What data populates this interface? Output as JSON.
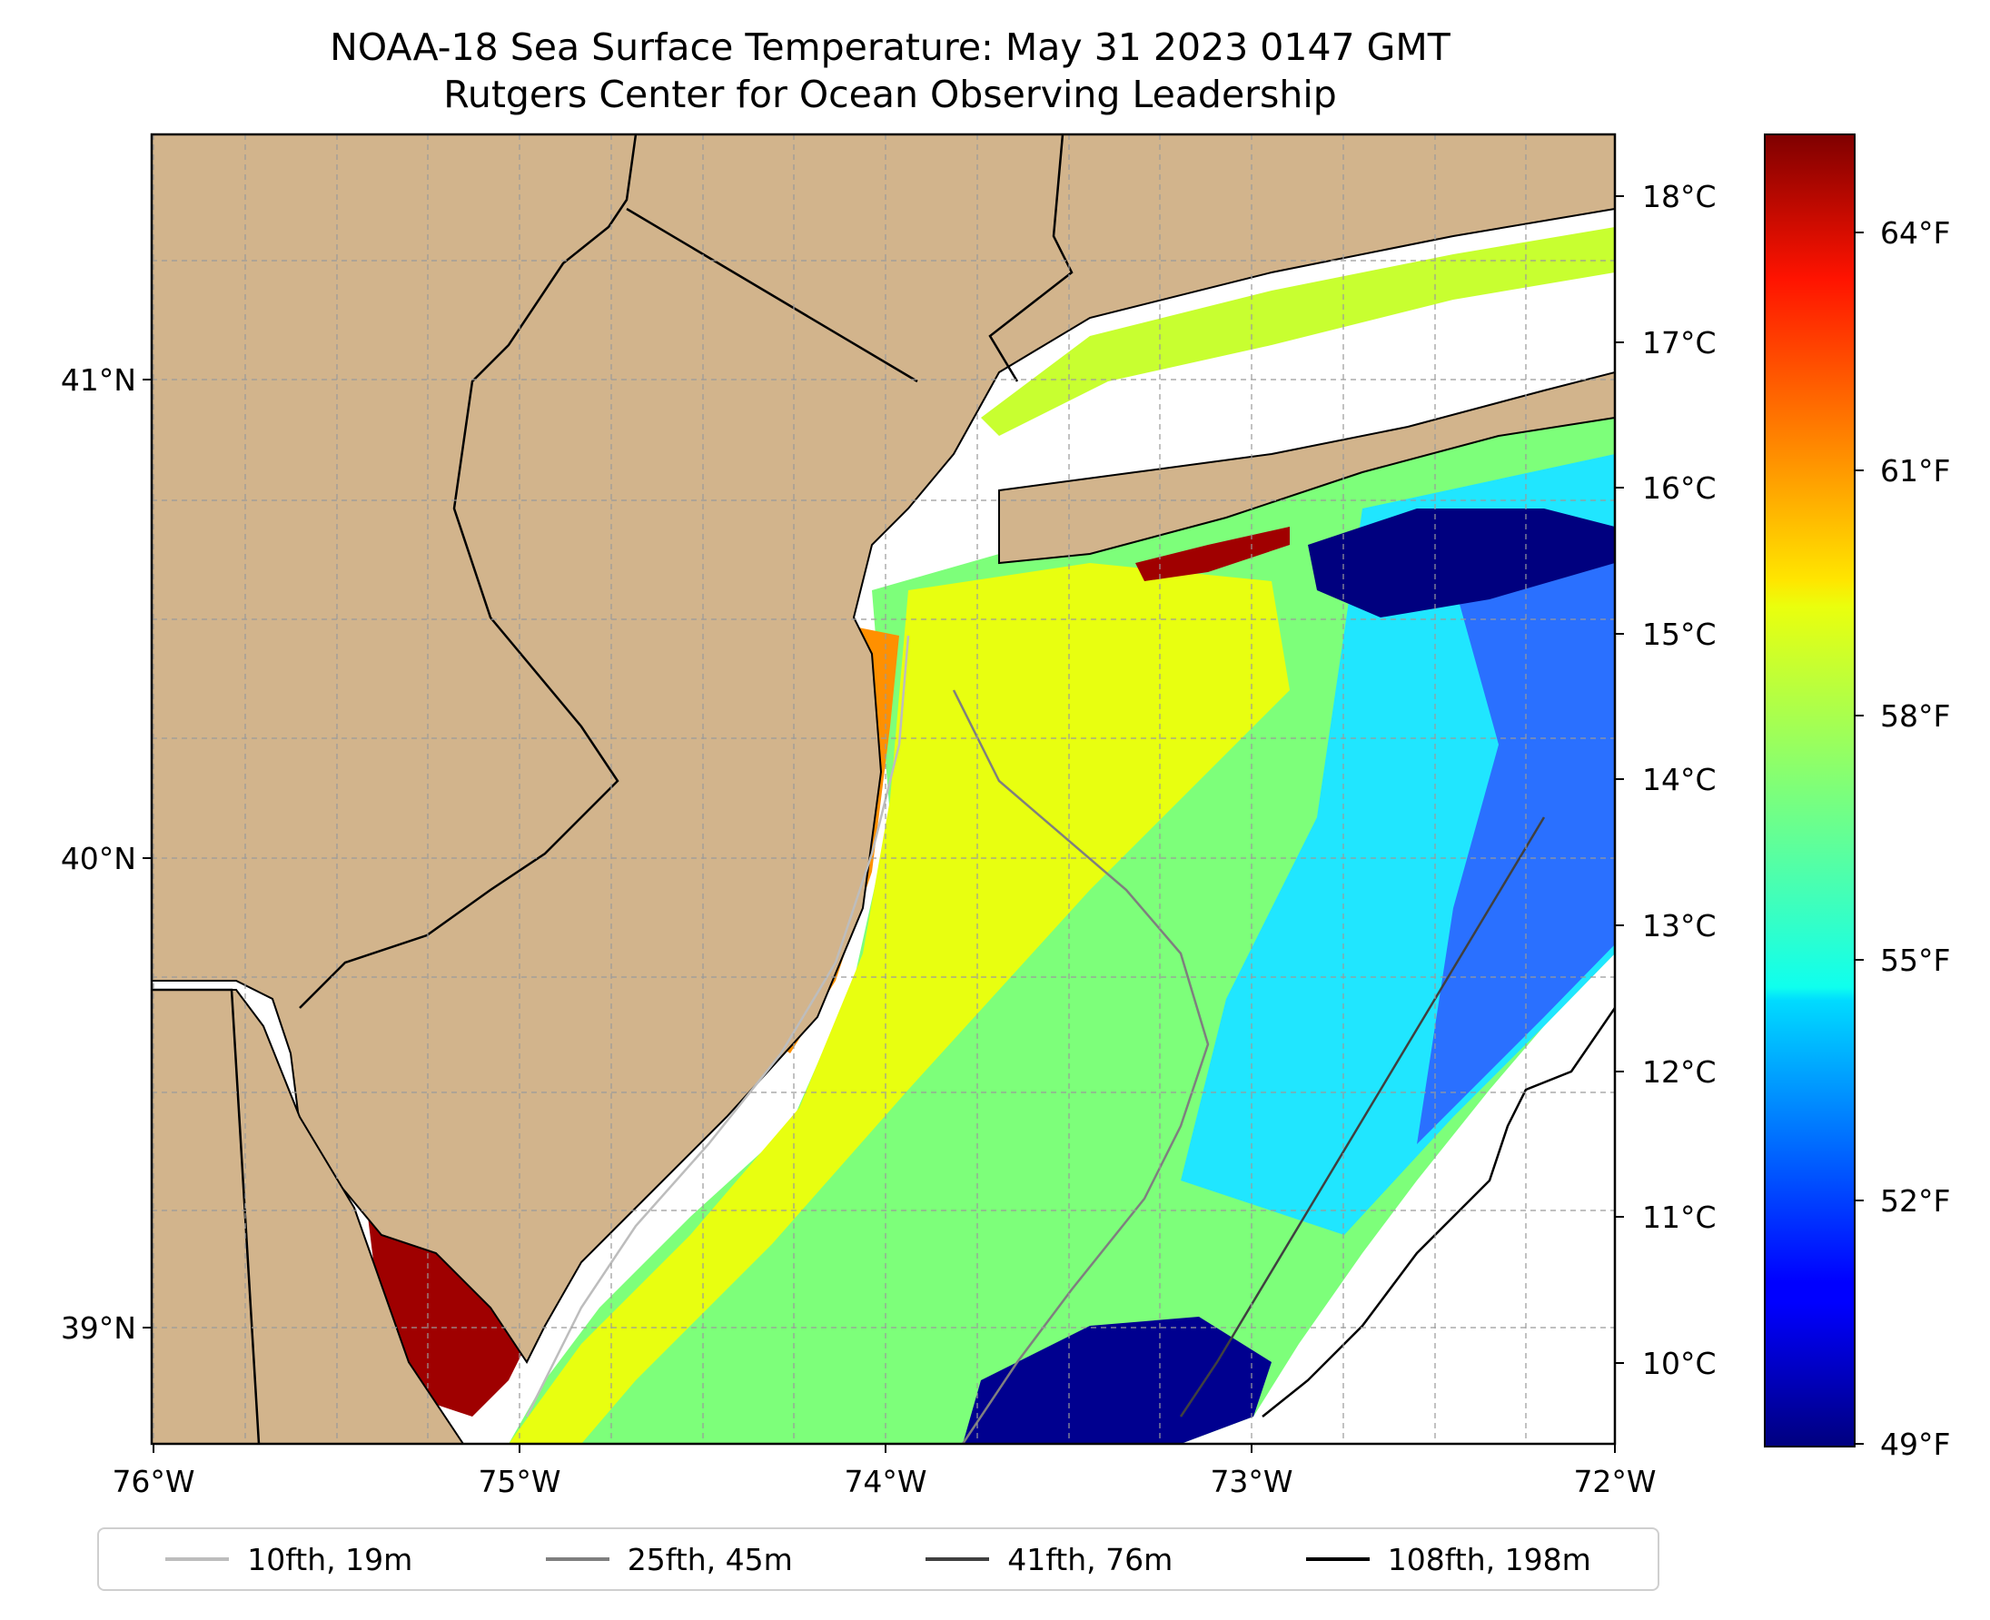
{
  "title": {
    "line1": "NOAA-18 Sea Surface Temperature: May 31 2023 0147 GMT",
    "line2": "Rutgers Center for Ocean Observing Leadership"
  },
  "axes": {
    "lon_ticks": [
      "76°W",
      "75°W",
      "74°W",
      "73°W",
      "72°W"
    ],
    "lat_ticks": [
      "41°N",
      "40°N",
      "39°N"
    ]
  },
  "colorbar": {
    "celsius_ticks": [
      "18°C",
      "17°C",
      "16°C",
      "15°C",
      "14°C",
      "13°C",
      "12°C",
      "11°C",
      "10°C"
    ],
    "fahrenheit_ticks": [
      "64°F",
      "61°F",
      "58°F",
      "55°F",
      "52°F",
      "49°F"
    ],
    "colormap": "jet"
  },
  "legend": [
    {
      "label": "10fth, 19m",
      "color": "#bdbdbd"
    },
    {
      "label": "25fth, 45m",
      "color": "#7f7f7f"
    },
    {
      "label": "41fth, 76m",
      "color": "#404040"
    },
    {
      "label": "108fth, 198m",
      "color": "#000000"
    }
  ],
  "colors": {
    "land": "#d2b48c",
    "no_data": "#ffffff"
  }
}
